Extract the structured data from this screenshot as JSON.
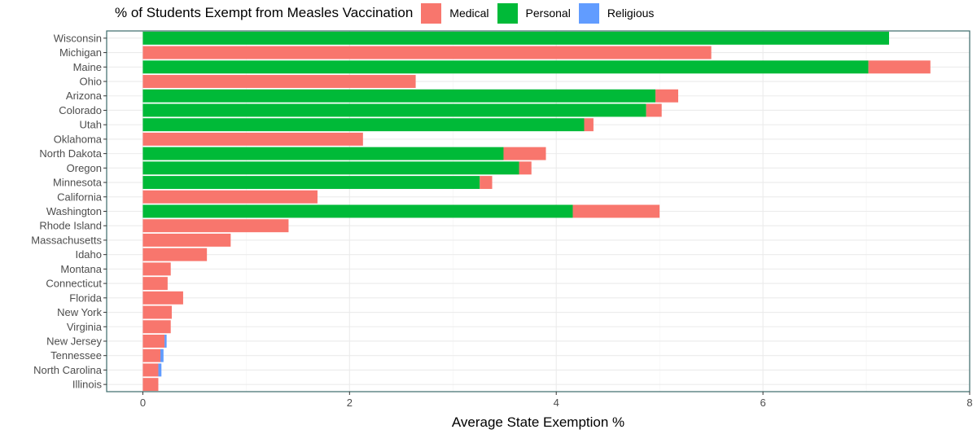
{
  "chart_data": {
    "type": "bar",
    "orientation": "horizontal",
    "stacked": true,
    "legend_title": "% of Students Exempt from Measles Vaccination",
    "legend_position": "top",
    "xlabel": "Average State Exemption %",
    "ylabel": "",
    "xlim": [
      -0.35,
      8.0
    ],
    "x_ticks": [
      0,
      2,
      4,
      6,
      8
    ],
    "grid": true,
    "categories": [
      "Wisconsin",
      "Michigan",
      "Maine",
      "Ohio",
      "Arizona",
      "Colorado",
      "Utah",
      "Oklahoma",
      "North Dakota",
      "Oregon",
      "Minnesota",
      "California",
      "Washington",
      "Rhode Island",
      "Massachusetts",
      "Idaho",
      "Montana",
      "Connecticut",
      "Florida",
      "New York",
      "Virginia",
      "New Jersey",
      "Tennessee",
      "North Carolina",
      "Illinois"
    ],
    "series": [
      {
        "name": "Personal",
        "color": "#00ba38",
        "values": [
          7.22,
          0,
          7.02,
          0,
          4.96,
          4.87,
          4.27,
          0,
          3.49,
          3.64,
          3.26,
          0,
          4.16,
          0,
          0,
          0,
          0,
          0,
          0,
          0,
          0,
          0,
          0,
          0,
          0
        ]
      },
      {
        "name": "Medical",
        "color": "#f8766d",
        "values": [
          0,
          5.5,
          0.6,
          2.64,
          0.22,
          0.15,
          0.09,
          2.13,
          0.41,
          0.12,
          0.12,
          1.69,
          0.84,
          1.41,
          0.85,
          0.62,
          0.27,
          0.24,
          0.39,
          0.28,
          0.27,
          0.21,
          0.17,
          0.15,
          0.15
        ]
      },
      {
        "name": "Religious",
        "color": "#619cff",
        "values": [
          0,
          0,
          0,
          0,
          0,
          0,
          0,
          0,
          0,
          0,
          0,
          0,
          0,
          0,
          0,
          0,
          0,
          0,
          0,
          0,
          0,
          0.02,
          0.03,
          0.03,
          0
        ]
      }
    ],
    "legend_order": [
      "Medical",
      "Personal",
      "Religious"
    ]
  }
}
